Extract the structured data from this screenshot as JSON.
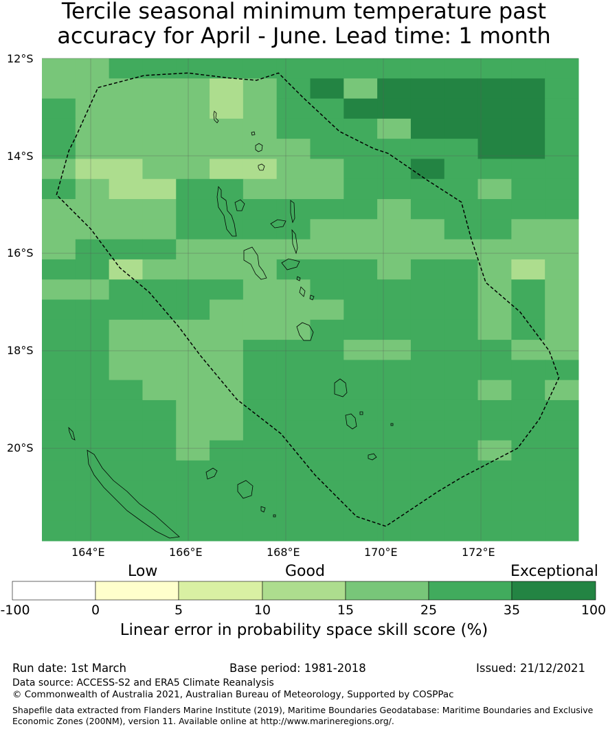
{
  "title": {
    "line1": "Tercile seasonal minimum temperature past",
    "line2": "accuracy for April - June. Lead time: 1 month"
  },
  "map": {
    "lat_labels": [
      "12°S",
      "14°S",
      "16°S",
      "18°S",
      "20°S"
    ],
    "lon_labels": [
      "164°E",
      "166°E",
      "168°E",
      "170°E",
      "172°E"
    ],
    "lon_range": [
      163,
      174
    ],
    "lat_range": [
      -12,
      -21.9
    ],
    "cell_size_deg": 0.8333,
    "skill_grid": [
      [
        15,
        15,
        25,
        25,
        25,
        25,
        25,
        25,
        25,
        25,
        25,
        25,
        25,
        25,
        25,
        25
      ],
      [
        15,
        15,
        15,
        15,
        15,
        10,
        15,
        25,
        35,
        15,
        35,
        35,
        35,
        35,
        35,
        25
      ],
      [
        25,
        15,
        15,
        15,
        15,
        10,
        15,
        25,
        25,
        35,
        35,
        35,
        35,
        35,
        35,
        25
      ],
      [
        25,
        15,
        15,
        15,
        15,
        15,
        15,
        25,
        25,
        25,
        15,
        35,
        35,
        35,
        35,
        25
      ],
      [
        25,
        15,
        15,
        15,
        15,
        15,
        15,
        15,
        25,
        25,
        25,
        25,
        25,
        35,
        35,
        25
      ],
      [
        15,
        10,
        10,
        15,
        15,
        10,
        10,
        15,
        15,
        25,
        25,
        35,
        25,
        25,
        25,
        25
      ],
      [
        25,
        15,
        10,
        10,
        25,
        25,
        15,
        15,
        15,
        25,
        25,
        25,
        25,
        15,
        25,
        25
      ],
      [
        15,
        15,
        15,
        15,
        25,
        25,
        25,
        25,
        25,
        25,
        15,
        25,
        25,
        25,
        25,
        25
      ],
      [
        15,
        15,
        15,
        15,
        25,
        25,
        25,
        25,
        15,
        15,
        15,
        15,
        25,
        25,
        15,
        15
      ],
      [
        15,
        25,
        25,
        25,
        15,
        15,
        15,
        15,
        15,
        15,
        15,
        15,
        15,
        15,
        15,
        15
      ],
      [
        25,
        25,
        10,
        15,
        15,
        15,
        15,
        25,
        25,
        25,
        15,
        25,
        25,
        15,
        10,
        15
      ],
      [
        15,
        15,
        25,
        25,
        25,
        25,
        15,
        15,
        25,
        25,
        25,
        25,
        25,
        15,
        25,
        15
      ],
      [
        25,
        25,
        25,
        25,
        25,
        15,
        15,
        15,
        15,
        25,
        25,
        25,
        25,
        15,
        25,
        15
      ],
      [
        25,
        25,
        15,
        15,
        15,
        15,
        15,
        15,
        25,
        25,
        25,
        25,
        25,
        15,
        25,
        15
      ],
      [
        25,
        25,
        15,
        15,
        15,
        15,
        25,
        25,
        25,
        15,
        15,
        25,
        25,
        25,
        15,
        15
      ],
      [
        25,
        25,
        15,
        15,
        15,
        15,
        25,
        25,
        25,
        25,
        25,
        25,
        25,
        25,
        25,
        25
      ],
      [
        25,
        25,
        25,
        15,
        15,
        15,
        25,
        25,
        25,
        25,
        25,
        25,
        25,
        15,
        25,
        15
      ],
      [
        25,
        25,
        25,
        25,
        15,
        15,
        25,
        25,
        25,
        25,
        25,
        25,
        25,
        25,
        25,
        25
      ],
      [
        25,
        25,
        25,
        25,
        15,
        15,
        25,
        25,
        25,
        25,
        25,
        25,
        25,
        25,
        25,
        25
      ],
      [
        25,
        25,
        25,
        25,
        15,
        25,
        25,
        25,
        25,
        25,
        25,
        25,
        25,
        15,
        25,
        25
      ],
      [
        25,
        25,
        25,
        25,
        25,
        25,
        25,
        25,
        25,
        25,
        25,
        25,
        25,
        25,
        25,
        25
      ],
      [
        25,
        25,
        25,
        25,
        25,
        25,
        25,
        25,
        25,
        25,
        25,
        25,
        25,
        25,
        25,
        25
      ],
      [
        25,
        25,
        25,
        25,
        25,
        25,
        25,
        25,
        25,
        25,
        25,
        25,
        25,
        25,
        25,
        25
      ],
      [
        25,
        25,
        25,
        25,
        25,
        25,
        25,
        25,
        25,
        25,
        25,
        25,
        25,
        25,
        25,
        25
      ]
    ],
    "eez_boundary": [
      [
        163.3,
        -14.8
      ],
      [
        163.55,
        -13.9
      ],
      [
        163.7,
        -13.6
      ],
      [
        164.15,
        -12.6
      ],
      [
        165.1,
        -12.35
      ],
      [
        166.0,
        -12.3
      ],
      [
        166.8,
        -12.4
      ],
      [
        167.4,
        -12.45
      ],
      [
        167.85,
        -12.3
      ],
      [
        168.35,
        -12.8
      ],
      [
        169.1,
        -13.5
      ],
      [
        169.8,
        -13.85
      ],
      [
        170.1,
        -13.95
      ],
      [
        170.9,
        -14.5
      ],
      [
        171.6,
        -14.95
      ],
      [
        171.8,
        -15.7
      ],
      [
        172.1,
        -16.6
      ],
      [
        172.8,
        -17.2
      ],
      [
        173.4,
        -18.0
      ],
      [
        173.6,
        -18.55
      ],
      [
        173.2,
        -19.4
      ],
      [
        172.75,
        -20.0
      ],
      [
        171.6,
        -20.6
      ],
      [
        171.1,
        -20.9
      ],
      [
        170.05,
        -21.6
      ],
      [
        169.45,
        -21.4
      ],
      [
        168.6,
        -20.55
      ],
      [
        167.9,
        -19.7
      ],
      [
        167.0,
        -19.0
      ],
      [
        166.25,
        -18.1
      ],
      [
        165.8,
        -17.5
      ],
      [
        165.2,
        -16.8
      ],
      [
        164.6,
        -16.3
      ],
      [
        164.0,
        -15.5
      ],
      [
        163.3,
        -14.8
      ]
    ]
  },
  "colorbar": {
    "categories": [
      "Low",
      "Good",
      "Exceptional"
    ],
    "ticks": [
      "-100",
      "0",
      "5",
      "10",
      "15",
      "25",
      "35",
      "100"
    ],
    "colors": [
      "#ffffff",
      "#ffffcc",
      "#d9f0a3",
      "#addd8e",
      "#78c679",
      "#41ab5d",
      "#238443"
    ],
    "title": "Linear error in probability space skill score (%)"
  },
  "footer": {
    "run_date": "Run date: 1st March",
    "base_period": "Base period: 1981-2018",
    "issued": "Issued: 21/12/2021",
    "data_source": "Data source: ACCESS-S2 and ERA5 Climate Reanalysis",
    "copyright": "© Commonwealth of Australia 2021, Australian Bureau of Meteorology, Supported by COSPPac",
    "shapefile": "Shapefile data extracted from Flanders Marine Institute (2019), Maritime Boundaries Geodatabase: Maritime Boundaries and Exclusive Economic Zones (200NM), version 11. Available online at http://www.marineregions.org/."
  }
}
